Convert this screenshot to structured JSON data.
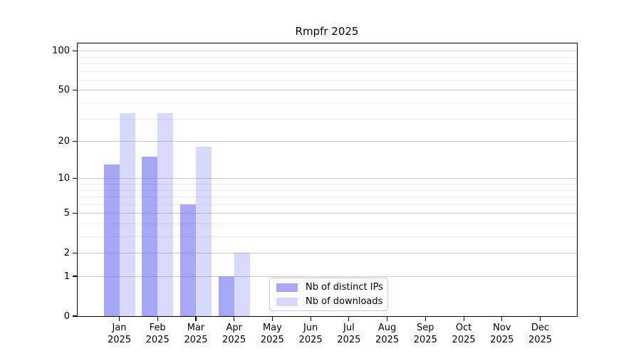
{
  "title": "Rmpfr 2025",
  "chart_data": {
    "type": "bar",
    "title": "Rmpfr 2025",
    "scale": "log1p",
    "grid": true,
    "legend_position": "bottom-center",
    "categories": [
      "Jan",
      "Feb",
      "Mar",
      "Apr",
      "May",
      "Jun",
      "Jul",
      "Aug",
      "Sep",
      "Oct",
      "Nov",
      "Dec"
    ],
    "year_label": "2025",
    "series": [
      {
        "name": "Nb of distinct IPs",
        "color": "rgba(120,120,240,0.65)",
        "color_hex_on_white": "#a8a8f5",
        "values": [
          13,
          15,
          6,
          1,
          0,
          0,
          0,
          0,
          0,
          0,
          0,
          0
        ]
      },
      {
        "name": "Nb of downloads",
        "color": "rgba(120,120,240,0.28)",
        "color_hex_on_white": "#d9d9fb",
        "values": [
          33,
          33,
          18,
          2,
          0,
          0,
          0,
          0,
          0,
          0,
          0,
          0
        ]
      }
    ],
    "yticks": [
      0,
      1,
      2,
      5,
      10,
      20,
      50,
      100
    ],
    "minor_gridlines": [
      3,
      4,
      6,
      7,
      8,
      9,
      30,
      40,
      60,
      70,
      80,
      90
    ],
    "ylim": [
      0,
      100
    ],
    "xlabel": "",
    "ylabel": ""
  }
}
